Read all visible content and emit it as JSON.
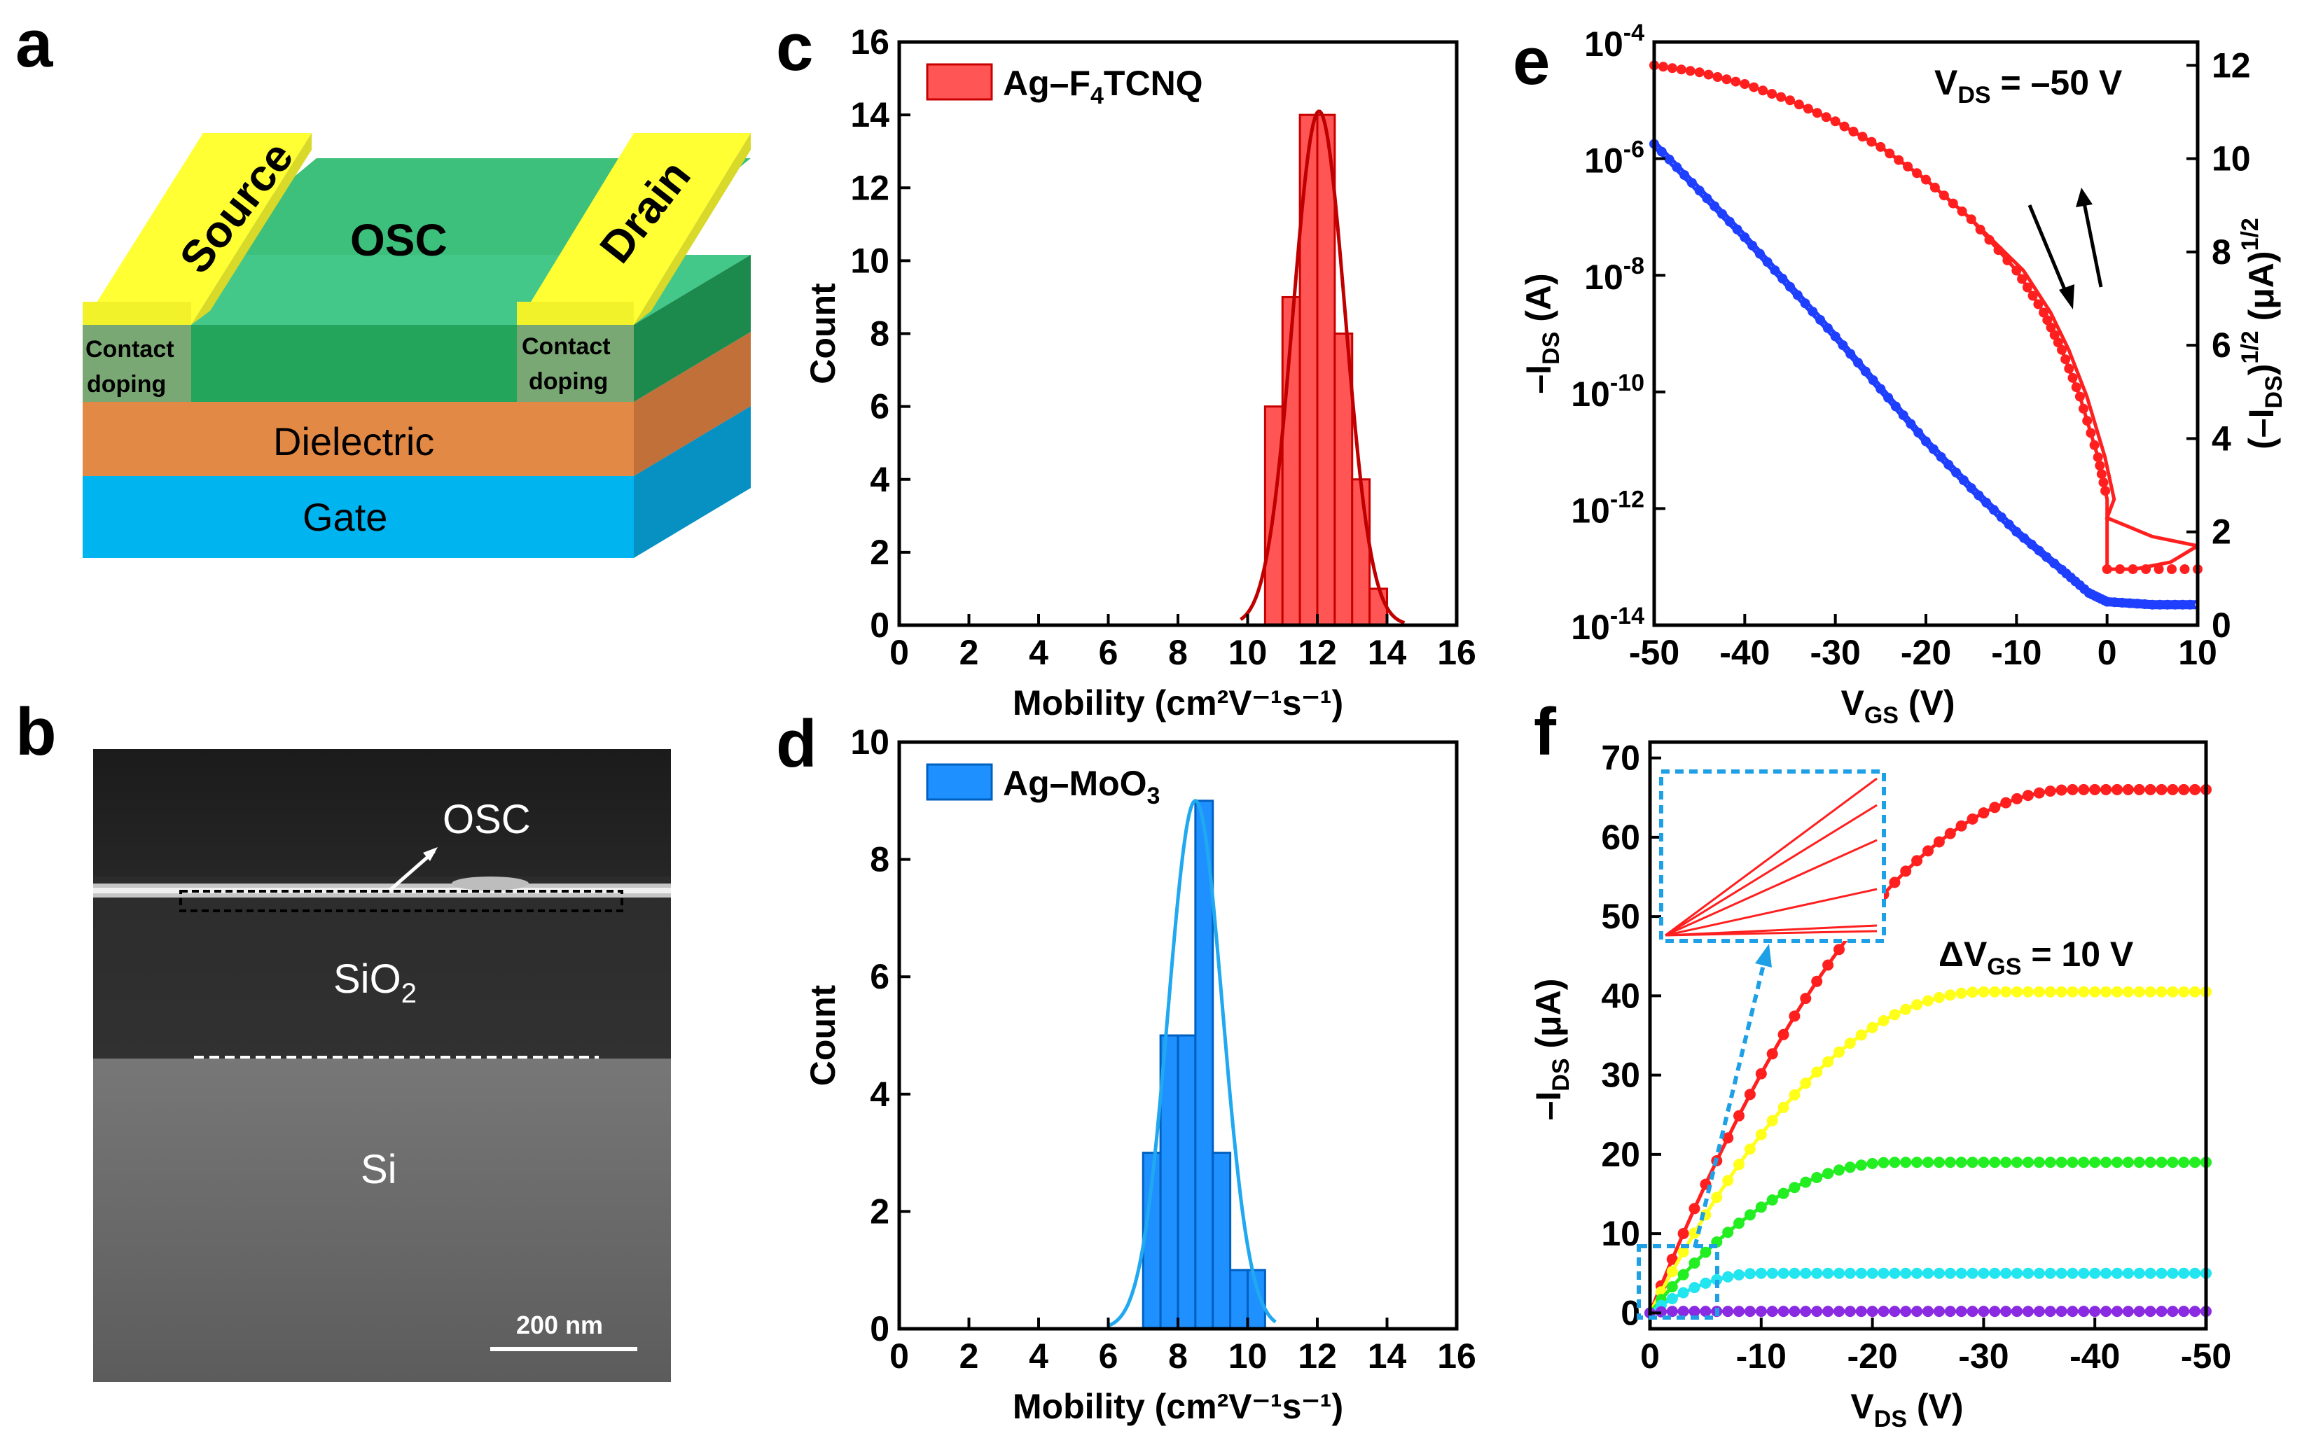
{
  "panel_labels": {
    "a": "a",
    "b": "b",
    "c": "c",
    "d": "d",
    "e": "e",
    "f": "f"
  },
  "schematic": {
    "source": "Source",
    "drain": "Drain",
    "osc": "OSC",
    "contact_doping_line1": "Contact",
    "contact_doping_line2": "doping",
    "dielectric": "Dielectric",
    "gate": "Gate",
    "colors": {
      "metal": "#ffff33",
      "osc": "#3cc07c",
      "dielectric": "#e38946",
      "gate": "#00b4f0",
      "contact": "#7aa874"
    }
  },
  "sem": {
    "osc": "OSC",
    "sio2": "SiO",
    "sio2_sub": "2",
    "si": "Si",
    "scale_bar": "200 nm"
  },
  "chart_data": [
    {
      "id": "c",
      "type": "bar",
      "xlabel": "Mobility (cm²V⁻¹s⁻¹)",
      "ylabel": "Count",
      "xlim": [
        0,
        16
      ],
      "ylim": [
        0,
        16
      ],
      "xticks": [
        "0",
        "2",
        "4",
        "6",
        "8",
        "10",
        "12",
        "14",
        "16"
      ],
      "yticks": [
        "0",
        "2",
        "4",
        "6",
        "8",
        "10",
        "12",
        "14",
        "16"
      ],
      "legend": "Ag–F4TCNQ",
      "legend_sub_index": 4,
      "color": "#ff5555",
      "bin_width": 0.5,
      "bins": [
        {
          "x": 10.75,
          "count": 6
        },
        {
          "x": 11.25,
          "count": 9
        },
        {
          "x": 11.75,
          "count": 14
        },
        {
          "x": 12.25,
          "count": 14
        },
        {
          "x": 12.75,
          "count": 8
        },
        {
          "x": 13.25,
          "count": 4
        },
        {
          "x": 13.75,
          "count": 1
        }
      ],
      "fit": {
        "mu": 12.05,
        "sigma": 0.75,
        "amp": 14.1,
        "range": [
          9.8,
          14.5
        ]
      }
    },
    {
      "id": "d",
      "type": "bar",
      "xlabel": "Mobility (cm²V⁻¹s⁻¹)",
      "ylabel": "Count",
      "xlim": [
        0,
        16
      ],
      "ylim": [
        0,
        10
      ],
      "xticks": [
        "0",
        "2",
        "4",
        "6",
        "8",
        "10",
        "12",
        "14",
        "16"
      ],
      "yticks": [
        "0",
        "2",
        "4",
        "6",
        "8",
        "10"
      ],
      "legend": "Ag–MoO3",
      "legend_sub_index": 6,
      "color": "#1e90ff",
      "bin_width": 0.5,
      "bins": [
        {
          "x": 7.25,
          "count": 3
        },
        {
          "x": 7.75,
          "count": 5
        },
        {
          "x": 8.25,
          "count": 5
        },
        {
          "x": 8.75,
          "count": 9
        },
        {
          "x": 9.25,
          "count": 3
        },
        {
          "x": 9.75,
          "count": 1
        },
        {
          "x": 10.25,
          "count": 1
        }
      ],
      "fit": {
        "mu": 8.5,
        "sigma": 0.78,
        "amp": 9.0,
        "range": [
          6.0,
          10.8
        ]
      }
    },
    {
      "id": "e",
      "type": "line",
      "annotation": "V",
      "annotation_sub": "DS",
      "annotation_rest": " = –50 V",
      "xlabel": "V",
      "xlabel_sub": "GS",
      "xlabel_rest": " (V)",
      "ylabel_left": "–I",
      "ylabel_left_sub": "DS",
      "ylabel_left_rest": " (A)",
      "ylabel_right": "(–I",
      "ylabel_right_sub": "DS",
      "ylabel_right_mid": ")",
      "ylabel_right_sup": "1/2",
      "ylabel_right_rest": " (μA)",
      "ylabel_right_sup2": "1/2",
      "xlim": [
        -50,
        10
      ],
      "ylim_left_log": [
        -14,
        -4
      ],
      "ylim_right": [
        0,
        12.5
      ],
      "xticks": [
        "-50",
        "-40",
        "-30",
        "-20",
        "-10",
        "0",
        "10"
      ],
      "yticks_left_base": "10",
      "yticks_left_exp": [
        "-14",
        "-12",
        "-10",
        "-8",
        "-6",
        "-4"
      ],
      "yticks_right": [
        "0",
        "2",
        "4",
        "6",
        "8",
        "10",
        "12"
      ],
      "series": [
        {
          "axis": "left-log",
          "color": "#1f3fff",
          "x": [
            -50,
            -45,
            -40,
            -35,
            -30,
            -25,
            -20,
            -15,
            -10,
            -5,
            -2,
            0,
            5,
            10
          ],
          "y_log10": [
            -5.7,
            -6.5,
            -7.3,
            -8.15,
            -9.0,
            -9.9,
            -10.8,
            -11.6,
            -12.35,
            -13.0,
            -13.4,
            -13.55,
            -13.6,
            -13.6
          ]
        },
        {
          "axis": "right",
          "color": "#ff1f1f",
          "x": [
            -50,
            -45,
            -40,
            -35,
            -30,
            -25,
            -20,
            -15,
            -10,
            -7,
            -5,
            -3,
            -1,
            0,
            0,
            3,
            7,
            10
          ],
          "y": [
            12.0,
            11.85,
            11.6,
            11.25,
            10.8,
            10.25,
            9.55,
            8.7,
            7.6,
            6.7,
            5.9,
            4.9,
            3.6,
            2.7,
            1.2,
            1.2,
            1.35,
            1.7
          ]
        }
      ]
    },
    {
      "id": "f",
      "type": "line",
      "annotation": "ΔV",
      "annotation_sub": "GS",
      "annotation_rest": " = 10 V",
      "xlabel": "V",
      "xlabel_sub": "DS",
      "xlabel_rest": " (V)",
      "ylabel": "–I",
      "ylabel_sub": "DS",
      "ylabel_rest": " (μA)",
      "xlim": [
        0,
        -50
      ],
      "ylim": [
        -2,
        72
      ],
      "xticks": [
        "0",
        "-10",
        "-20",
        "-30",
        "-40",
        "-50"
      ],
      "yticks": [
        "0",
        "10",
        "20",
        "30",
        "40",
        "50",
        "60",
        "70"
      ],
      "series": [
        {
          "color": "#ff1f1f",
          "sat": 66,
          "vsat": 38
        },
        {
          "color": "#ffff1a",
          "sat": 40.5,
          "vsat": 30
        },
        {
          "color": "#22ee22",
          "sat": 19,
          "vsat": 22
        },
        {
          "color": "#22e5f0",
          "sat": 5,
          "vsat": 10
        },
        {
          "color": "#8a2be2",
          "sat": 0.2,
          "vsat": 2
        }
      ],
      "inset_color": "#1ea0e6"
    }
  ]
}
